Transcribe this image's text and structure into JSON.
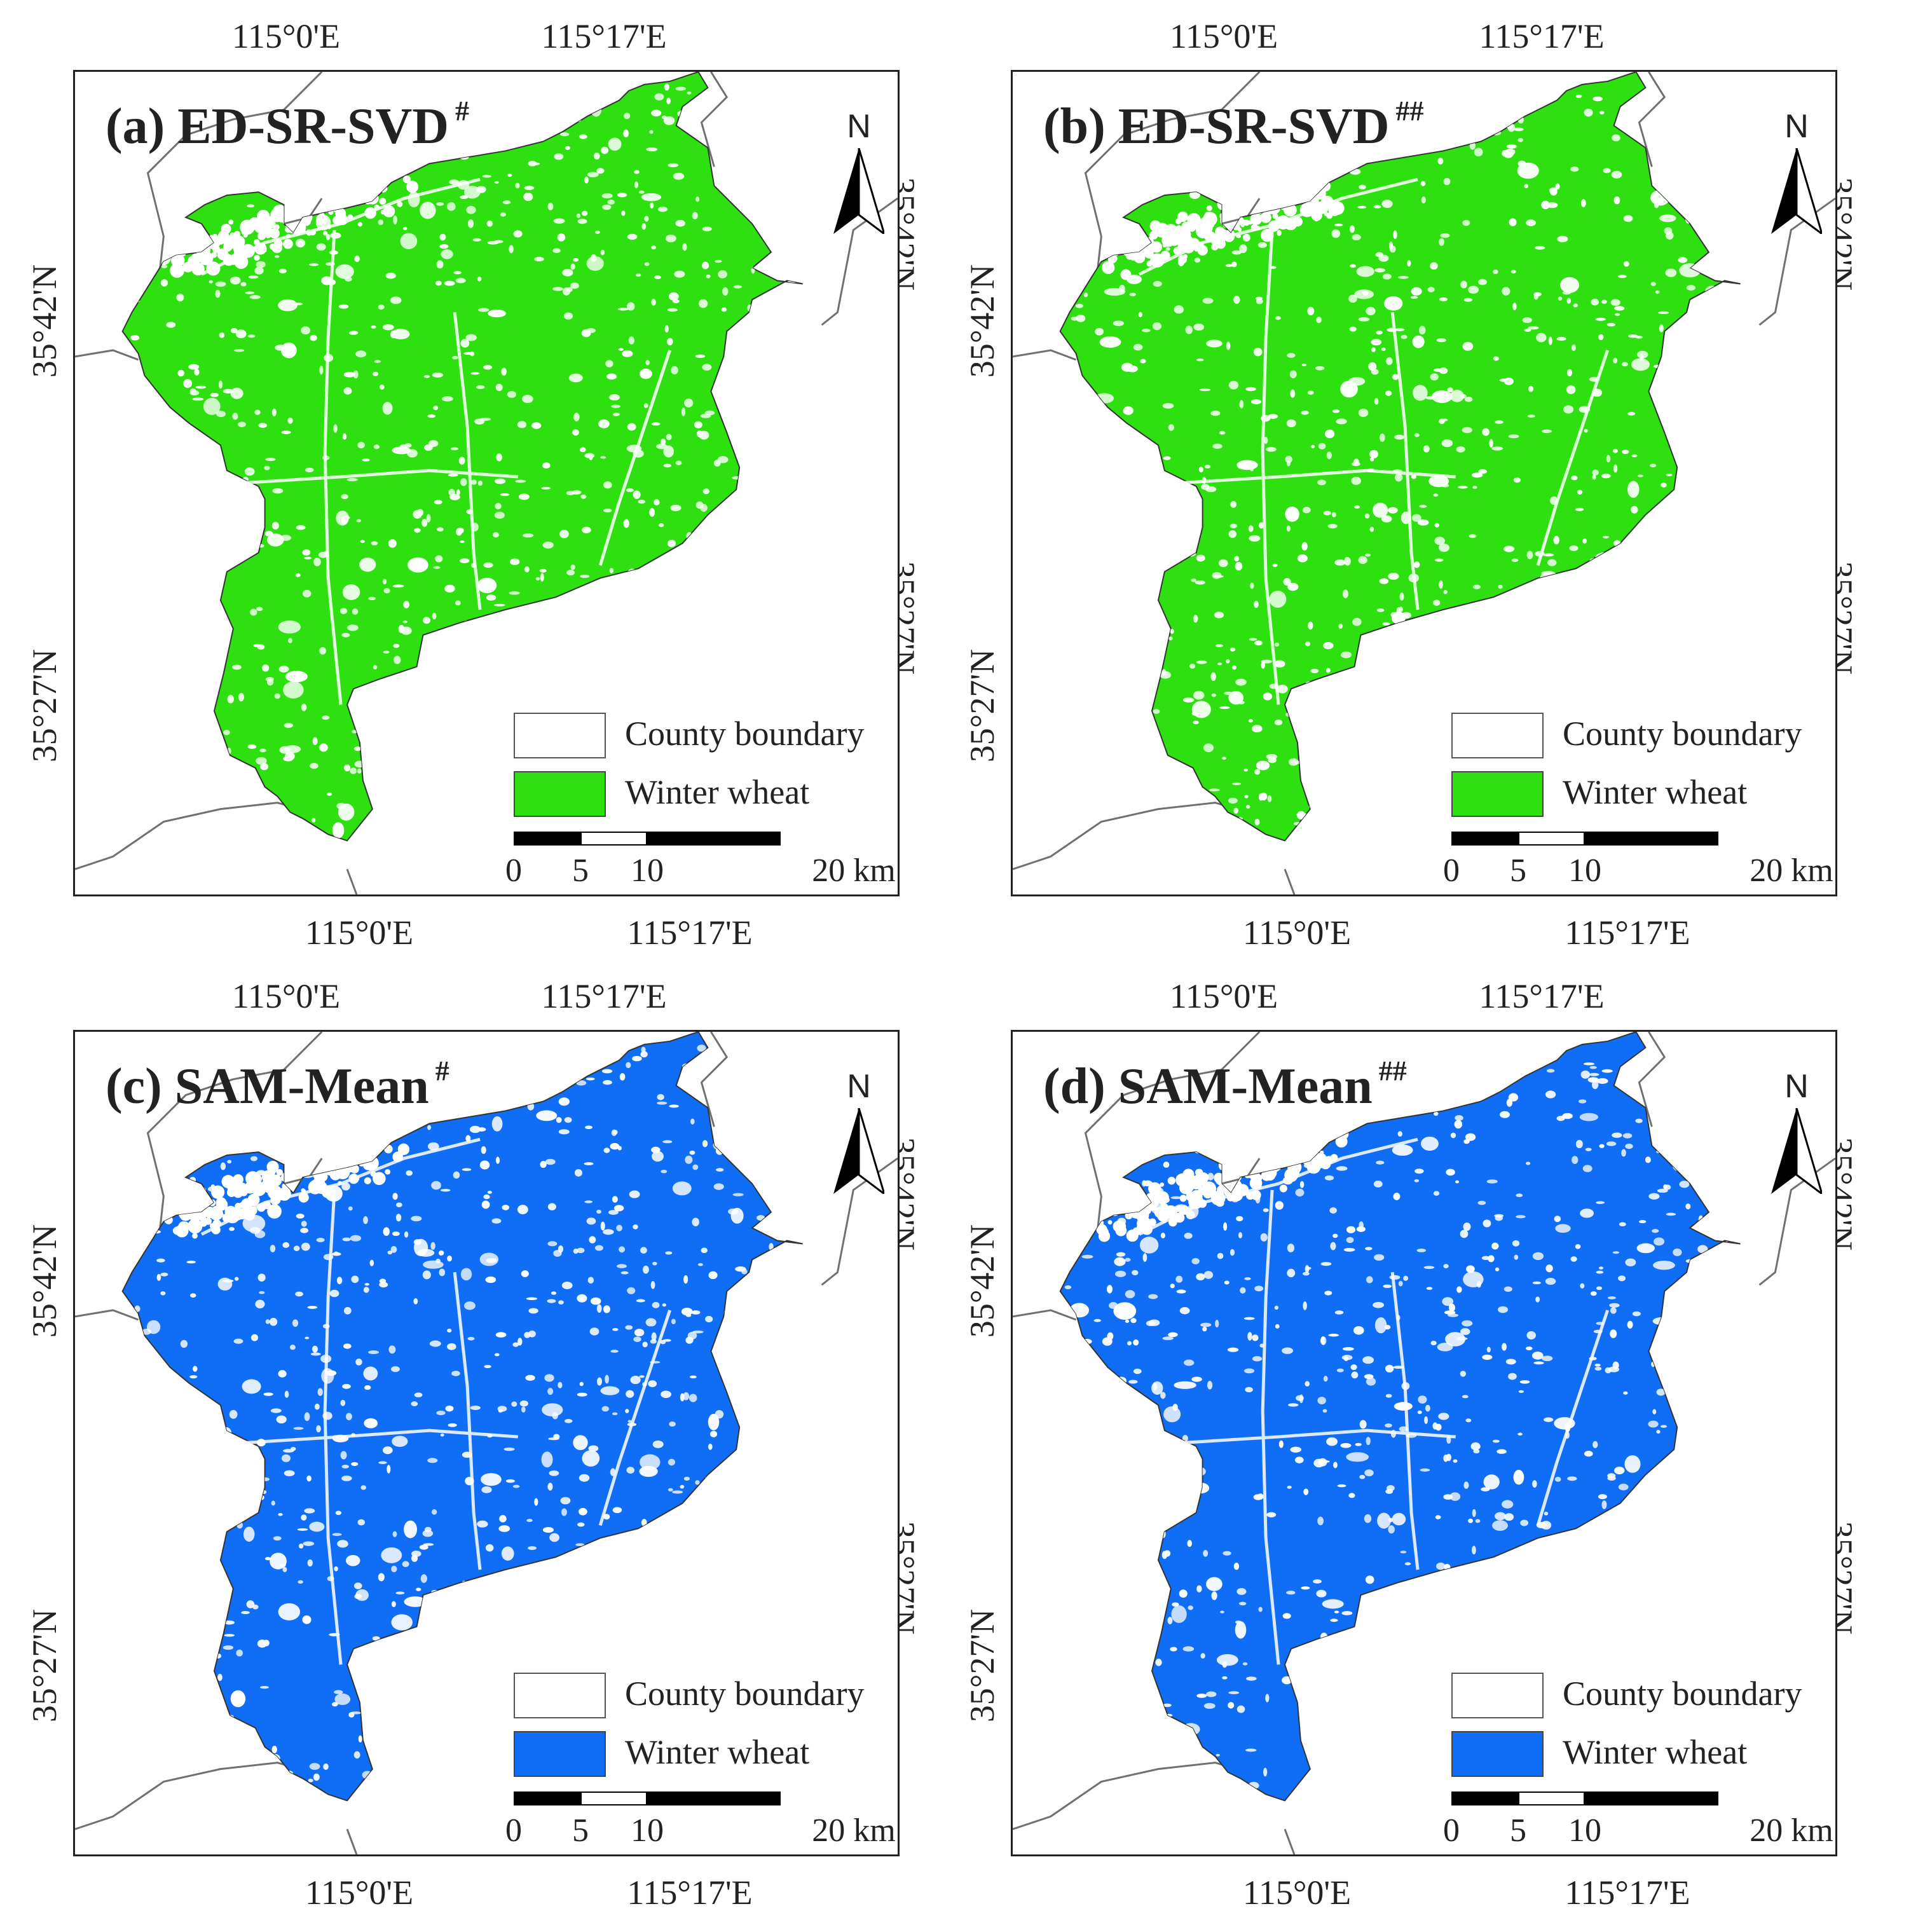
{
  "colors": {
    "frame": "#222222",
    "county_line": "#707070",
    "speckle": "#ffffff"
  },
  "coordinates": {
    "top": [
      "115°0'E",
      "115°17'E"
    ],
    "bottom": [
      "115°0'E",
      "115°17'E"
    ],
    "left": [
      "35°42'N",
      "35°27'N"
    ],
    "right": [
      "35°42'N",
      "35°27'N"
    ]
  },
  "north_label": "N",
  "scale": {
    "labels": [
      "0",
      "5",
      "10",
      "20 km"
    ]
  },
  "panels": [
    {
      "id": "a",
      "title": "(a) ED-SR-SVD",
      "marker": "#",
      "legend": {
        "boundary": "County boundary",
        "wheat": "Winter wheat"
      },
      "wheat_color": "#2ee00f"
    },
    {
      "id": "b",
      "title": "(b) ED-SR-SVD",
      "marker": "##",
      "legend": {
        "boundary": "County boundary",
        "wheat": "Winter wheat"
      },
      "wheat_color": "#2ee00f"
    },
    {
      "id": "c",
      "title": "(c) SAM-Mean",
      "marker": "#",
      "legend": {
        "boundary": "County boundary",
        "wheat": "Winter wheat"
      },
      "wheat_color": "#0f6ef5"
    },
    {
      "id": "d",
      "title": "(d) SAM-Mean",
      "marker": "##",
      "legend": {
        "boundary": "County boundary",
        "wheat": "Winter wheat"
      },
      "wheat_color": "#0f6ef5"
    }
  ]
}
